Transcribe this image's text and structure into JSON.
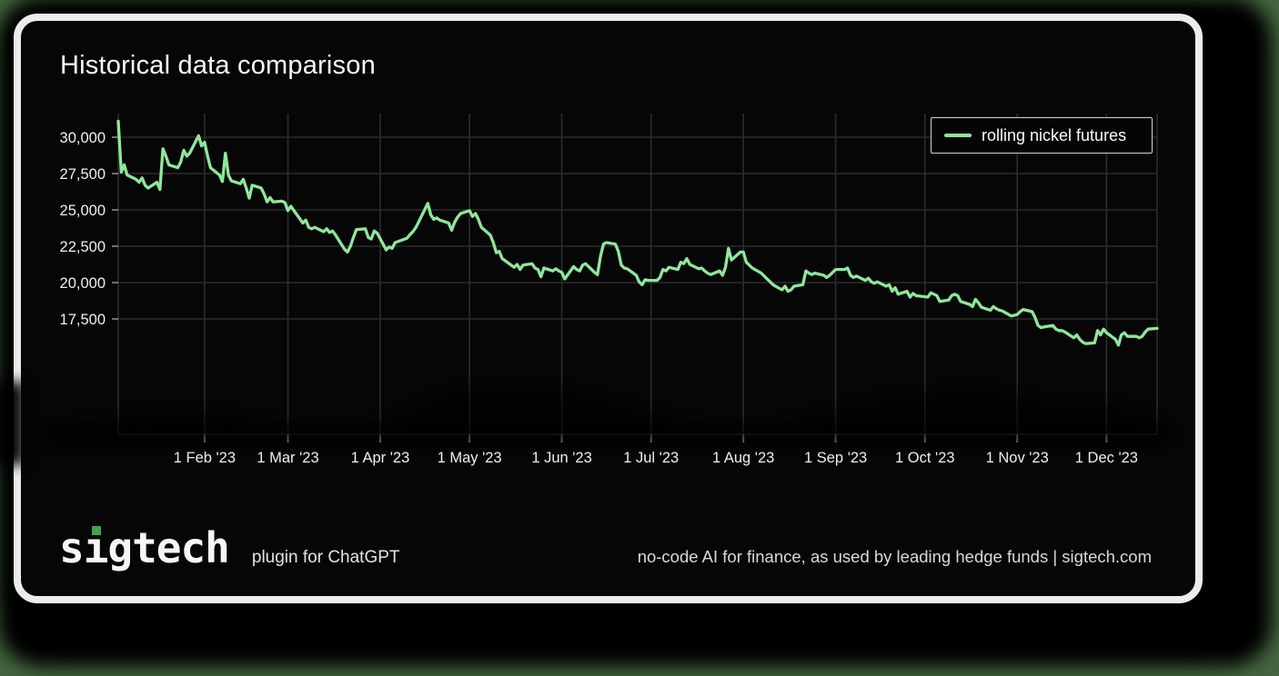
{
  "page": {
    "background_color": "#44653f",
    "card_background": "#060606",
    "card_border_color": "#ececec"
  },
  "title": "Historical data comparison",
  "legend": {
    "label": "rolling nickel futures",
    "line_color": "#8fe79b",
    "position": "top-right"
  },
  "footer": {
    "logo_text": "sigtech",
    "logo_dot_color": "#3fa34d",
    "tagline": "plugin for ChatGPT",
    "right_text": "no-code AI for finance, as used by leading hedge funds | sigtech.com"
  },
  "chart_data": {
    "type": "line",
    "title": "Historical data comparison",
    "grid": true,
    "legend_position": "top-right",
    "line_color": "#8fe79b",
    "grid_color": "#2c2c2c",
    "xlim": [
      "2023-01-03",
      "2023-12-18"
    ],
    "ylim": [
      9550,
      31650
    ],
    "year": 2023,
    "y_ticks": [
      {
        "value": 30000,
        "label": "30,000"
      },
      {
        "value": 27500,
        "label": "27,500"
      },
      {
        "value": 25000,
        "label": "25,000"
      },
      {
        "value": 22500,
        "label": "22,500"
      },
      {
        "value": 20000,
        "label": "20,000"
      },
      {
        "value": 17500,
        "label": "17,500"
      }
    ],
    "x_ticks": [
      {
        "date": "2023-02-01",
        "label": "1 Feb '23"
      },
      {
        "date": "2023-03-01",
        "label": "1 Mar '23"
      },
      {
        "date": "2023-04-01",
        "label": "1 Apr '23"
      },
      {
        "date": "2023-05-01",
        "label": "1 May '23"
      },
      {
        "date": "2023-06-01",
        "label": "1 Jun '23"
      },
      {
        "date": "2023-07-01",
        "label": "1 Jul '23"
      },
      {
        "date": "2023-08-01",
        "label": "1 Aug '23"
      },
      {
        "date": "2023-09-01",
        "label": "1 Sep '23"
      },
      {
        "date": "2023-10-01",
        "label": "1 Oct '23"
      },
      {
        "date": "2023-11-01",
        "label": "1 Nov '23"
      },
      {
        "date": "2023-12-01",
        "label": "1 Dec '23"
      }
    ],
    "series": [
      {
        "name": "rolling nickel futures",
        "color": "#8fe79b",
        "points": [
          [
            "01-03",
            31100
          ],
          [
            "01-04",
            27600
          ],
          [
            "01-05",
            28100
          ],
          [
            "01-06",
            27400
          ],
          [
            "01-09",
            27100
          ],
          [
            "01-10",
            26900
          ],
          [
            "01-11",
            27200
          ],
          [
            "01-12",
            26700
          ],
          [
            "01-13",
            26500
          ],
          [
            "01-16",
            26900
          ],
          [
            "01-17",
            26400
          ],
          [
            "01-18",
            29200
          ],
          [
            "01-19",
            28700
          ],
          [
            "01-20",
            28100
          ],
          [
            "01-23",
            27900
          ],
          [
            "01-24",
            28300
          ],
          [
            "01-25",
            29100
          ],
          [
            "01-26",
            28700
          ],
          [
            "01-27",
            28900
          ],
          [
            "01-30",
            30100
          ],
          [
            "01-31",
            29400
          ],
          [
            "02-01",
            29650
          ],
          [
            "02-02",
            28700
          ],
          [
            "02-03",
            27900
          ],
          [
            "02-06",
            27400
          ],
          [
            "02-07",
            26950
          ],
          [
            "02-08",
            28900
          ],
          [
            "02-09",
            27400
          ],
          [
            "02-10",
            27000
          ],
          [
            "02-13",
            26800
          ],
          [
            "02-14",
            27100
          ],
          [
            "02-15",
            26500
          ],
          [
            "02-16",
            25800
          ],
          [
            "02-17",
            26700
          ],
          [
            "02-20",
            26500
          ],
          [
            "02-21",
            26100
          ],
          [
            "02-22",
            25550
          ],
          [
            "02-23",
            25850
          ],
          [
            "02-24",
            25550
          ],
          [
            "02-27",
            25600
          ],
          [
            "02-28",
            25500
          ],
          [
            "03-01",
            24950
          ],
          [
            "03-02",
            25250
          ],
          [
            "03-03",
            24950
          ],
          [
            "03-06",
            24100
          ],
          [
            "03-07",
            24300
          ],
          [
            "03-08",
            23800
          ],
          [
            "03-09",
            23700
          ],
          [
            "03-10",
            23800
          ],
          [
            "03-13",
            23500
          ],
          [
            "03-14",
            23700
          ],
          [
            "03-15",
            23450
          ],
          [
            "03-16",
            23550
          ],
          [
            "03-17",
            23270
          ],
          [
            "03-20",
            22300
          ],
          [
            "03-21",
            22100
          ],
          [
            "03-22",
            22500
          ],
          [
            "03-23",
            23100
          ],
          [
            "03-24",
            23650
          ],
          [
            "03-27",
            23700
          ],
          [
            "03-28",
            23100
          ],
          [
            "03-29",
            23000
          ],
          [
            "03-30",
            23550
          ],
          [
            "03-31",
            23400
          ],
          [
            "04-03",
            22250
          ],
          [
            "04-04",
            22450
          ],
          [
            "04-05",
            22350
          ],
          [
            "04-06",
            22750
          ],
          [
            "04-10",
            23050
          ],
          [
            "04-11",
            23300
          ],
          [
            "04-12",
            23500
          ],
          [
            "04-13",
            23800
          ],
          [
            "04-14",
            24200
          ],
          [
            "04-17",
            25450
          ],
          [
            "04-18",
            24650
          ],
          [
            "04-19",
            24350
          ],
          [
            "04-20",
            24450
          ],
          [
            "04-21",
            24300
          ],
          [
            "04-24",
            24100
          ],
          [
            "04-25",
            23600
          ],
          [
            "04-26",
            24150
          ],
          [
            "04-27",
            24500
          ],
          [
            "04-28",
            24750
          ],
          [
            "05-01",
            24950
          ],
          [
            "05-02",
            24550
          ],
          [
            "05-03",
            24750
          ],
          [
            "05-04",
            24350
          ],
          [
            "05-05",
            23800
          ],
          [
            "05-08",
            23270
          ],
          [
            "05-09",
            22750
          ],
          [
            "05-10",
            22050
          ],
          [
            "05-11",
            22150
          ],
          [
            "05-12",
            21650
          ],
          [
            "05-15",
            21200
          ],
          [
            "05-16",
            21050
          ],
          [
            "05-17",
            21250
          ],
          [
            "05-18",
            20900
          ],
          [
            "05-19",
            21200
          ],
          [
            "05-22",
            21300
          ],
          [
            "05-23",
            21000
          ],
          [
            "05-24",
            20900
          ],
          [
            "05-25",
            20400
          ],
          [
            "05-26",
            21000
          ],
          [
            "05-29",
            20800
          ],
          [
            "05-30",
            20950
          ],
          [
            "05-31",
            20800
          ],
          [
            "06-01",
            20700
          ],
          [
            "06-02",
            20250
          ],
          [
            "06-05",
            21100
          ],
          [
            "06-06",
            20900
          ],
          [
            "06-07",
            20800
          ],
          [
            "06-08",
            21200
          ],
          [
            "06-09",
            21300
          ],
          [
            "06-12",
            20700
          ],
          [
            "06-13",
            20550
          ],
          [
            "06-14",
            21800
          ],
          [
            "06-15",
            22650
          ],
          [
            "06-16",
            22750
          ],
          [
            "06-19",
            22650
          ],
          [
            "06-20",
            22150
          ],
          [
            "06-21",
            21200
          ],
          [
            "06-22",
            21000
          ],
          [
            "06-23",
            20950
          ],
          [
            "06-26",
            20500
          ],
          [
            "06-27",
            20050
          ],
          [
            "06-28",
            19850
          ],
          [
            "06-29",
            20200
          ],
          [
            "06-30",
            20150
          ],
          [
            "07-03",
            20150
          ],
          [
            "07-04",
            20350
          ],
          [
            "07-05",
            20900
          ],
          [
            "07-06",
            20800
          ],
          [
            "07-07",
            21050
          ],
          [
            "07-10",
            20900
          ],
          [
            "07-11",
            21400
          ],
          [
            "07-12",
            21300
          ],
          [
            "07-13",
            21650
          ],
          [
            "07-14",
            21250
          ],
          [
            "07-17",
            20950
          ],
          [
            "07-18",
            21000
          ],
          [
            "07-19",
            20800
          ],
          [
            "07-20",
            20650
          ],
          [
            "07-21",
            20550
          ],
          [
            "07-24",
            20800
          ],
          [
            "07-25",
            20500
          ],
          [
            "07-26",
            21050
          ],
          [
            "07-27",
            22350
          ],
          [
            "07-28",
            21550
          ],
          [
            "07-31",
            22100
          ],
          [
            "08-01",
            22100
          ],
          [
            "08-02",
            21400
          ],
          [
            "08-03",
            21200
          ],
          [
            "08-04",
            21000
          ],
          [
            "08-07",
            20650
          ],
          [
            "08-08",
            20450
          ],
          [
            "08-09",
            20250
          ],
          [
            "08-10",
            20050
          ],
          [
            "08-11",
            19850
          ],
          [
            "08-14",
            19500
          ],
          [
            "08-15",
            19750
          ],
          [
            "08-16",
            19400
          ],
          [
            "08-17",
            19500
          ],
          [
            "08-18",
            19750
          ],
          [
            "08-21",
            19850
          ],
          [
            "08-22",
            20800
          ],
          [
            "08-23",
            20650
          ],
          [
            "08-24",
            20550
          ],
          [
            "08-25",
            20650
          ],
          [
            "08-28",
            20500
          ],
          [
            "08-29",
            20350
          ],
          [
            "08-30",
            20500
          ],
          [
            "09-01",
            20900
          ],
          [
            "09-04",
            20900
          ],
          [
            "09-05",
            21000
          ],
          [
            "09-06",
            20500
          ],
          [
            "09-07",
            20350
          ],
          [
            "09-08",
            20450
          ],
          [
            "09-11",
            20150
          ],
          [
            "09-12",
            20300
          ],
          [
            "09-13",
            20050
          ],
          [
            "09-14",
            19950
          ],
          [
            "09-15",
            20050
          ],
          [
            "09-18",
            19750
          ],
          [
            "09-19",
            19850
          ],
          [
            "09-20",
            19400
          ],
          [
            "09-21",
            19650
          ],
          [
            "09-22",
            19200
          ],
          [
            "09-25",
            19400
          ],
          [
            "09-26",
            19000
          ],
          [
            "09-27",
            19250
          ],
          [
            "09-28",
            19100
          ],
          [
            "10-02",
            19000
          ],
          [
            "10-03",
            19300
          ],
          [
            "10-04",
            19200
          ],
          [
            "10-05",
            19100
          ],
          [
            "10-06",
            18700
          ],
          [
            "10-09",
            18800
          ],
          [
            "10-10",
            19100
          ],
          [
            "10-11",
            19200
          ],
          [
            "10-12",
            19100
          ],
          [
            "10-13",
            18700
          ],
          [
            "10-16",
            18500
          ],
          [
            "10-17",
            18350
          ],
          [
            "10-18",
            18850
          ],
          [
            "10-19",
            18600
          ],
          [
            "10-20",
            18300
          ],
          [
            "10-23",
            18100
          ],
          [
            "10-24",
            18350
          ],
          [
            "10-25",
            18200
          ],
          [
            "10-26",
            18100
          ],
          [
            "10-27",
            18050
          ],
          [
            "10-30",
            17700
          ],
          [
            "10-31",
            17750
          ],
          [
            "11-01",
            17800
          ],
          [
            "11-02",
            18000
          ],
          [
            "11-03",
            18150
          ],
          [
            "11-06",
            18000
          ],
          [
            "11-07",
            17600
          ],
          [
            "11-08",
            17050
          ],
          [
            "11-09",
            16900
          ],
          [
            "11-10",
            16950
          ],
          [
            "11-13",
            17050
          ],
          [
            "11-14",
            16800
          ],
          [
            "11-15",
            16700
          ],
          [
            "11-16",
            16700
          ],
          [
            "11-17",
            16600
          ],
          [
            "11-20",
            16200
          ],
          [
            "11-21",
            16400
          ],
          [
            "11-22",
            16100
          ],
          [
            "11-23",
            15900
          ],
          [
            "11-24",
            15800
          ],
          [
            "11-27",
            15850
          ],
          [
            "11-28",
            16700
          ],
          [
            "11-29",
            16400
          ],
          [
            "11-30",
            16800
          ],
          [
            "12-01",
            16550
          ],
          [
            "12-04",
            16100
          ],
          [
            "12-05",
            15700
          ],
          [
            "12-06",
            16400
          ],
          [
            "12-07",
            16550
          ],
          [
            "12-08",
            16300
          ],
          [
            "12-11",
            16300
          ],
          [
            "12-12",
            16200
          ],
          [
            "12-13",
            16300
          ],
          [
            "12-14",
            16600
          ],
          [
            "12-15",
            16800
          ],
          [
            "12-18",
            16850
          ]
        ]
      }
    ]
  }
}
